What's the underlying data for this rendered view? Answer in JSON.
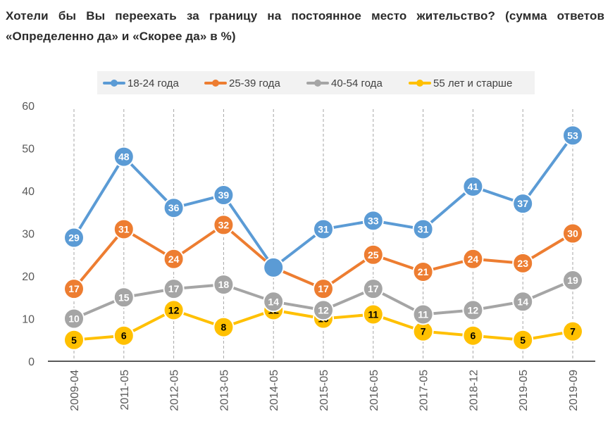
{
  "title": "Хотели бы Вы переехать за границу на постоянное место жительство? (сумма ответов «Определенно да» и «Скорее да» в %)",
  "chart_data": {
    "type": "line",
    "title": "Хотели бы Вы переехать за границу на постоянное место жительство? (сумма ответов «Определенно да» и «Скорее да» в %)",
    "xlabel": "",
    "ylabel": "",
    "ylim": [
      0,
      60
    ],
    "yticks": [
      0,
      10,
      20,
      30,
      40,
      50,
      60
    ],
    "grid": "vertical dashed at categories",
    "legend_position": "top",
    "categories": [
      "2009-04",
      "2011-05",
      "2012-05",
      "2013-05",
      "2014-05",
      "2015-05",
      "2016-05",
      "2017-05",
      "2018-12",
      "2019-05",
      "2019-09"
    ],
    "series": [
      {
        "name": "18-24 года",
        "color": "#5b9bd5",
        "label_color": "#ffffff",
        "values": [
          29,
          48,
          36,
          39,
          22,
          31,
          33,
          31,
          41,
          37,
          53
        ],
        "labels": [
          "29",
          "48",
          "36",
          "39",
          "",
          "31",
          "33",
          "31",
          "41",
          "37",
          "53"
        ]
      },
      {
        "name": "25-39 года",
        "color": "#ed7d31",
        "label_color": "#ffffff",
        "values": [
          17,
          31,
          24,
          32,
          22,
          17,
          25,
          21,
          24,
          23,
          30
        ],
        "labels": [
          "17",
          "31",
          "24",
          "32",
          "22",
          "17",
          "25",
          "21",
          "24",
          "23",
          "30"
        ]
      },
      {
        "name": "40-54 года",
        "color": "#a5a5a5",
        "label_color": "#ffffff",
        "values": [
          10,
          15,
          17,
          18,
          14,
          12,
          17,
          11,
          12,
          14,
          19
        ],
        "labels": [
          "10",
          "15",
          "17",
          "18",
          "14",
          "12",
          "17",
          "11",
          "12",
          "14",
          "19"
        ]
      },
      {
        "name": "55 лет и старше",
        "color": "#ffc000",
        "label_color": "#000000",
        "values": [
          5,
          6,
          12,
          8,
          12,
          10,
          11,
          7,
          6,
          5,
          7
        ],
        "labels": [
          "5",
          "6",
          "12",
          "8",
          "12",
          "10",
          "11",
          "7",
          "6",
          "5",
          "7"
        ]
      }
    ]
  }
}
